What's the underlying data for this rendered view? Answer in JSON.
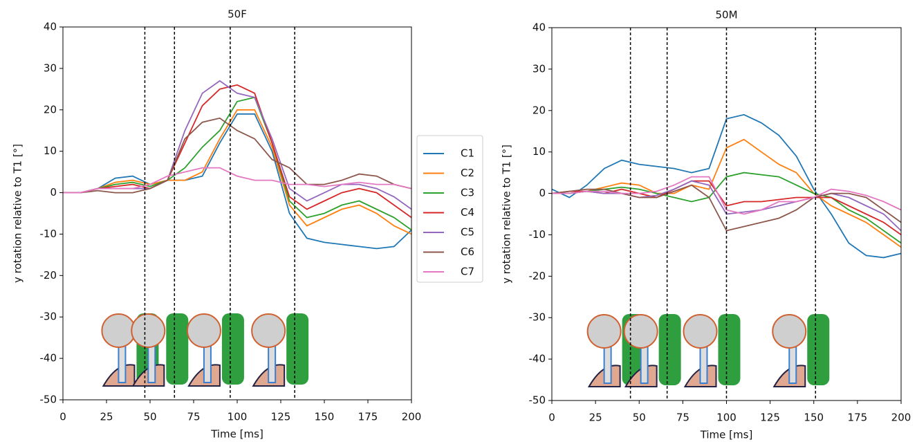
{
  "chart_data": [
    {
      "type": "line",
      "title": "50F",
      "xlabel": "Time [ms]",
      "ylabel": "y rotation relative to T1 [°]",
      "x": [
        0,
        10,
        20,
        30,
        40,
        50,
        60,
        70,
        80,
        90,
        100,
        110,
        120,
        130,
        140,
        150,
        160,
        170,
        180,
        190,
        200
      ],
      "xlim": [
        0,
        200
      ],
      "xticks": [
        0,
        25,
        50,
        75,
        100,
        125,
        150,
        175,
        200
      ],
      "ylim": [
        -50,
        40
      ],
      "yticks": [
        -50,
        -40,
        -30,
        -20,
        -10,
        0,
        10,
        20,
        30,
        40
      ],
      "vlines": [
        47,
        64,
        96,
        133
      ],
      "series": [
        {
          "name": "C1",
          "color": "#1f77b4",
          "values": [
            0,
            0,
            1,
            3.5,
            4,
            2,
            3,
            3,
            4,
            12,
            19,
            19,
            10,
            -5,
            -11,
            -12,
            -12.5,
            -13,
            -13.5,
            -13,
            -9
          ]
        },
        {
          "name": "C2",
          "color": "#ff7f0e",
          "values": [
            0,
            0,
            1,
            2.5,
            3,
            2,
            3,
            3,
            5,
            13,
            20,
            20,
            11,
            -3,
            -8,
            -6,
            -4,
            -3,
            -5,
            -8,
            -10
          ]
        },
        {
          "name": "C3",
          "color": "#2ca02c",
          "values": [
            0,
            0,
            1,
            2,
            2.5,
            1.5,
            3,
            6,
            11,
            15,
            22,
            23,
            12,
            -2,
            -6,
            -5,
            -3,
            -2,
            -4,
            -6,
            -9
          ]
        },
        {
          "name": "C4",
          "color": "#d62728",
          "values": [
            0,
            0,
            1,
            1.5,
            2,
            1,
            3,
            12,
            21,
            25,
            26,
            24,
            12,
            -1,
            -4,
            -2,
            0,
            1,
            0,
            -3,
            -6
          ]
        },
        {
          "name": "C5",
          "color": "#9467bd",
          "values": [
            0,
            0,
            1,
            1,
            1,
            1,
            3,
            15,
            24,
            27,
            24,
            23,
            13,
            1,
            -2,
            0,
            2,
            2,
            1,
            -1,
            -4
          ]
        },
        {
          "name": "C6",
          "color": "#8c564b",
          "values": [
            0,
            0,
            0.5,
            0,
            0,
            1,
            3,
            13,
            17,
            18,
            15,
            13,
            8,
            6,
            2,
            2,
            3,
            4.5,
            4,
            2,
            1
          ]
        },
        {
          "name": "C7",
          "color": "#e377c2",
          "values": [
            0,
            0,
            1,
            1,
            1,
            2,
            4,
            5,
            6,
            6,
            4,
            3,
            3,
            2,
            2,
            1.5,
            2,
            2.5,
            2,
            2,
            1
          ]
        }
      ]
    },
    {
      "type": "line",
      "title": "50M",
      "xlabel": "Time [ms]",
      "ylabel": "y rotation relative to T1 [°]",
      "x": [
        0,
        10,
        20,
        30,
        40,
        50,
        60,
        70,
        80,
        90,
        100,
        110,
        120,
        130,
        140,
        150,
        160,
        170,
        180,
        190,
        200
      ],
      "xlim": [
        0,
        200
      ],
      "xticks": [
        0,
        25,
        50,
        75,
        100,
        125,
        150,
        175,
        200
      ],
      "ylim": [
        -50,
        40
      ],
      "yticks": [
        -50,
        -40,
        -30,
        -20,
        -10,
        0,
        10,
        20,
        30,
        40
      ],
      "vlines": [
        45,
        66,
        100,
        151
      ],
      "series": [
        {
          "color": "#1f77b4",
          "values": [
            1,
            -1,
            2,
            6,
            8,
            7,
            6.5,
            6,
            5,
            6,
            18,
            19,
            17,
            14,
            9,
            1,
            -5,
            -12,
            -15,
            -15.5,
            -14.5
          ]
        },
        {
          "color": "#ff7f0e",
          "values": [
            0,
            0,
            0.5,
            1.5,
            2.5,
            2,
            0,
            0,
            2,
            1,
            11,
            13,
            10,
            7,
            5,
            0,
            -3,
            -5,
            -7,
            -10,
            -13
          ]
        },
        {
          "color": "#2ca02c",
          "values": [
            0,
            0,
            0.5,
            1,
            1.5,
            1,
            0,
            -1,
            -2,
            -1,
            4,
            5,
            4.5,
            4,
            2,
            0,
            -1,
            -4,
            -6,
            -9,
            -12
          ]
        },
        {
          "color": "#d62728",
          "values": [
            0,
            0.5,
            0.5,
            0,
            1,
            0,
            -1,
            1,
            3,
            3,
            -3,
            -2,
            -2,
            -1.5,
            -1,
            -1,
            -1,
            -3,
            -5,
            -7,
            -10
          ]
        },
        {
          "color": "#9467bd",
          "values": [
            0,
            0,
            0.5,
            0,
            0,
            -1,
            -0.5,
            1,
            3,
            2,
            -5,
            -4.5,
            -4,
            -3,
            -2,
            -1,
            0,
            -1,
            -3,
            -5,
            -9
          ]
        },
        {
          "color": "#8c564b",
          "values": [
            0,
            0.5,
            1,
            1,
            0,
            -1,
            -1,
            0.5,
            2,
            -1,
            -9,
            -8,
            -7,
            -6,
            -4,
            -1,
            0,
            0,
            -1,
            -4,
            -7
          ]
        },
        {
          "color": "#e377c2",
          "values": [
            0,
            0,
            0.5,
            0.5,
            0,
            0,
            0.5,
            2,
            4,
            4,
            -4,
            -5,
            -4,
            -2,
            -2,
            -1,
            1,
            0.5,
            -0.5,
            -2,
            -4
          ]
        }
      ]
    }
  ]
}
